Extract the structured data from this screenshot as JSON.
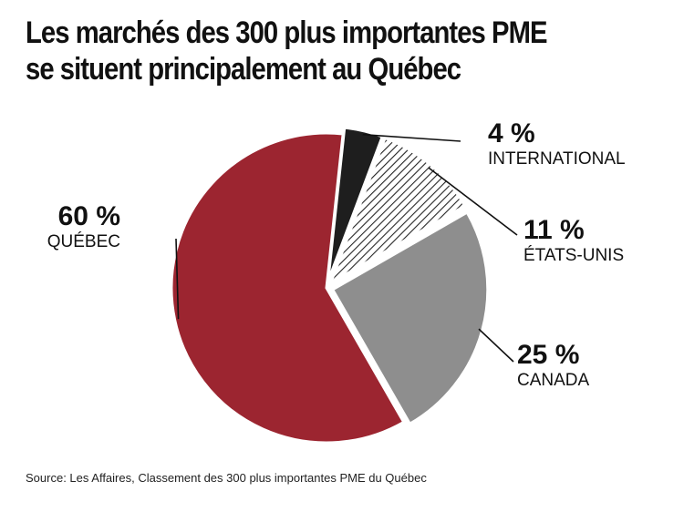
{
  "title": {
    "line1": "Les marchés des 300 plus importantes PME",
    "line2": "se situent principalement au Québec"
  },
  "source": "Source: Les Affaires, Classement des 300 plus importantes PME du Québec",
  "chart_data": {
    "type": "pie",
    "title": "Les marchés des 300 plus importantes PME se situent principalement au Québec",
    "slices": [
      {
        "label": "QUÉBEC",
        "value": 60,
        "display": "60 %",
        "color": "#9c2530",
        "fill_style": "solid"
      },
      {
        "label": "INTERNATIONAL",
        "value": 4,
        "display": "4 %",
        "color": "#1e1e1e",
        "fill_style": "solid"
      },
      {
        "label": "ÉTATS-UNIS",
        "value": 11,
        "display": "11 %",
        "color": "#222222",
        "fill_style": "hatched"
      },
      {
        "label": "CANADA",
        "value": 25,
        "display": "25 %",
        "color": "#8e8e8e",
        "fill_style": "solid"
      }
    ]
  }
}
